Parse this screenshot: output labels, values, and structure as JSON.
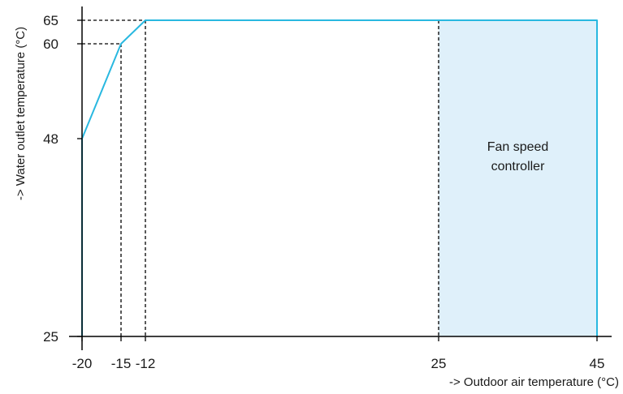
{
  "chart_data": {
    "type": "line",
    "title": "",
    "xlabel": "-> Outdoor air temperature (°C)",
    "ylabel": "-> Water outlet temperature (°C)",
    "xlim": [
      -20,
      45
    ],
    "ylim": [
      25,
      65
    ],
    "x_ticks": [
      "-20",
      "-15",
      "-12",
      "25",
      "45"
    ],
    "y_ticks": [
      "25",
      "48",
      "60",
      "65"
    ],
    "grid": false,
    "series": [
      {
        "x": [
          -20,
          -20,
          -15,
          -12,
          45,
          45
        ],
        "y": [
          25,
          48,
          60,
          65,
          65,
          25
        ]
      }
    ],
    "reference_lines": [
      {
        "x": -15,
        "y": 60
      },
      {
        "x": -12,
        "y": 65
      },
      {
        "x": 25,
        "y": 65
      }
    ],
    "shaded_region": {
      "x": [
        25,
        45
      ],
      "y": [
        25,
        65
      ],
      "label_lines": [
        "Fan speed",
        "controller"
      ]
    },
    "colors": {
      "line": "#29b8e0",
      "fill": "#dff0fa",
      "axis": "#000000",
      "dash": "#000000"
    }
  }
}
